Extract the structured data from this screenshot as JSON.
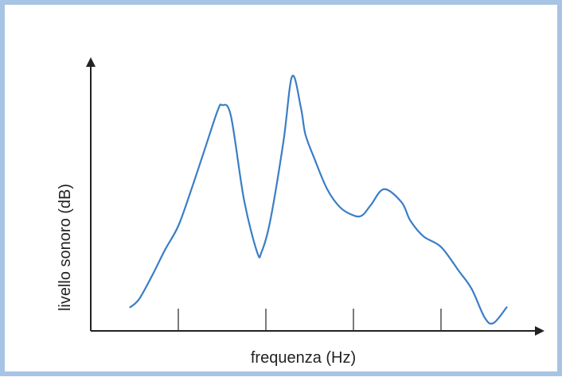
{
  "chart_data": {
    "type": "line",
    "xlabel": "frequenza (Hz)",
    "ylabel": "livello sonoro (dB)",
    "xlim": [
      0,
      5
    ],
    "ylim": [
      0,
      10
    ],
    "x_ticks": [
      1,
      2,
      3,
      4
    ],
    "x_tick_labels_shown": false,
    "y_ticks_shown": false,
    "grid": false,
    "series": [
      {
        "color": "#3a7ec6",
        "x": [
          0.45,
          0.55,
          0.7,
          0.85,
          1.0,
          1.15,
          1.3,
          1.45,
          1.5,
          1.6,
          1.75,
          1.9,
          1.95,
          2.05,
          2.2,
          2.3,
          2.4,
          2.45,
          2.55,
          2.7,
          2.85,
          3.0,
          3.1,
          3.2,
          3.35,
          3.55,
          3.65,
          3.8,
          4.0,
          4.2,
          4.35,
          4.5,
          4.6,
          4.75
        ],
        "y": [
          0.9,
          1.2,
          2.1,
          3.1,
          4.0,
          5.4,
          6.9,
          8.4,
          8.6,
          8.2,
          5.0,
          3.0,
          3.0,
          4.2,
          7.2,
          9.7,
          8.5,
          7.5,
          6.6,
          5.4,
          4.7,
          4.4,
          4.4,
          4.8,
          5.4,
          4.9,
          4.2,
          3.6,
          3.2,
          2.3,
          1.6,
          0.5,
          0.3,
          0.9
        ]
      }
    ]
  }
}
